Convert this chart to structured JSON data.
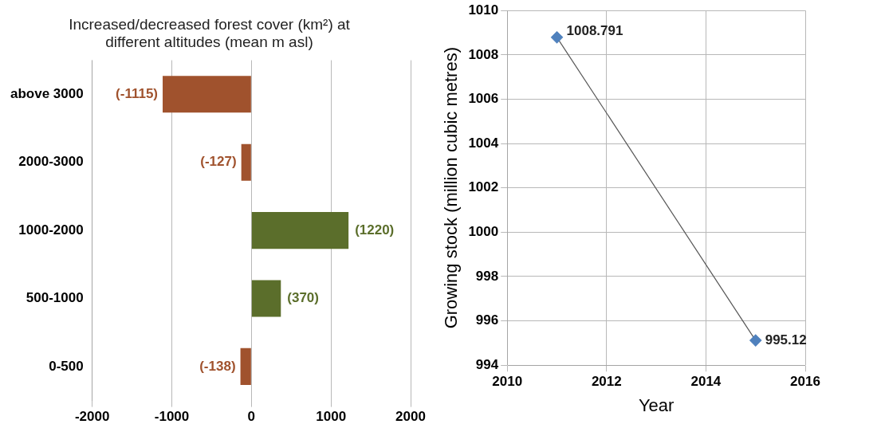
{
  "chart_data": [
    {
      "type": "bar",
      "orientation": "horizontal",
      "title": "Increased/decreased forest cover (km²) at different altitudes (mean m asl)",
      "categories": [
        "above 3000",
        "2000-3000",
        "1000-2000",
        "500-1000",
        "0-500"
      ],
      "values": [
        -1115,
        -127,
        1220,
        370,
        -138
      ],
      "colors": [
        "#a0522d",
        "#a0522d",
        "#5b6e2b",
        "#5b6e2b",
        "#a0522d"
      ],
      "value_labels": [
        "(-1115)",
        "(-127)",
        "(1220)",
        "(370)",
        "(-138)"
      ],
      "xlim": [
        -2000,
        2000
      ],
      "xticks": [
        -2000,
        -1000,
        0,
        1000,
        2000
      ],
      "grid": "x"
    },
    {
      "type": "line",
      "xlabel": "Year",
      "ylabel": "Growing stock (million cubic metres)",
      "x": [
        2011,
        2015
      ],
      "series": [
        {
          "color": "#4f81bd",
          "values": [
            1008.791,
            995.12
          ]
        }
      ],
      "value_labels": [
        "1008.791",
        "995.12"
      ],
      "xlim": [
        2010,
        2016
      ],
      "xticks": [
        2010,
        2012,
        2014,
        2016
      ],
      "ylim": [
        994,
        1010
      ],
      "yticks": [
        994,
        996,
        998,
        1000,
        1002,
        1004,
        1006,
        1008,
        1010
      ],
      "grid": true,
      "marker": "diamond"
    }
  ]
}
